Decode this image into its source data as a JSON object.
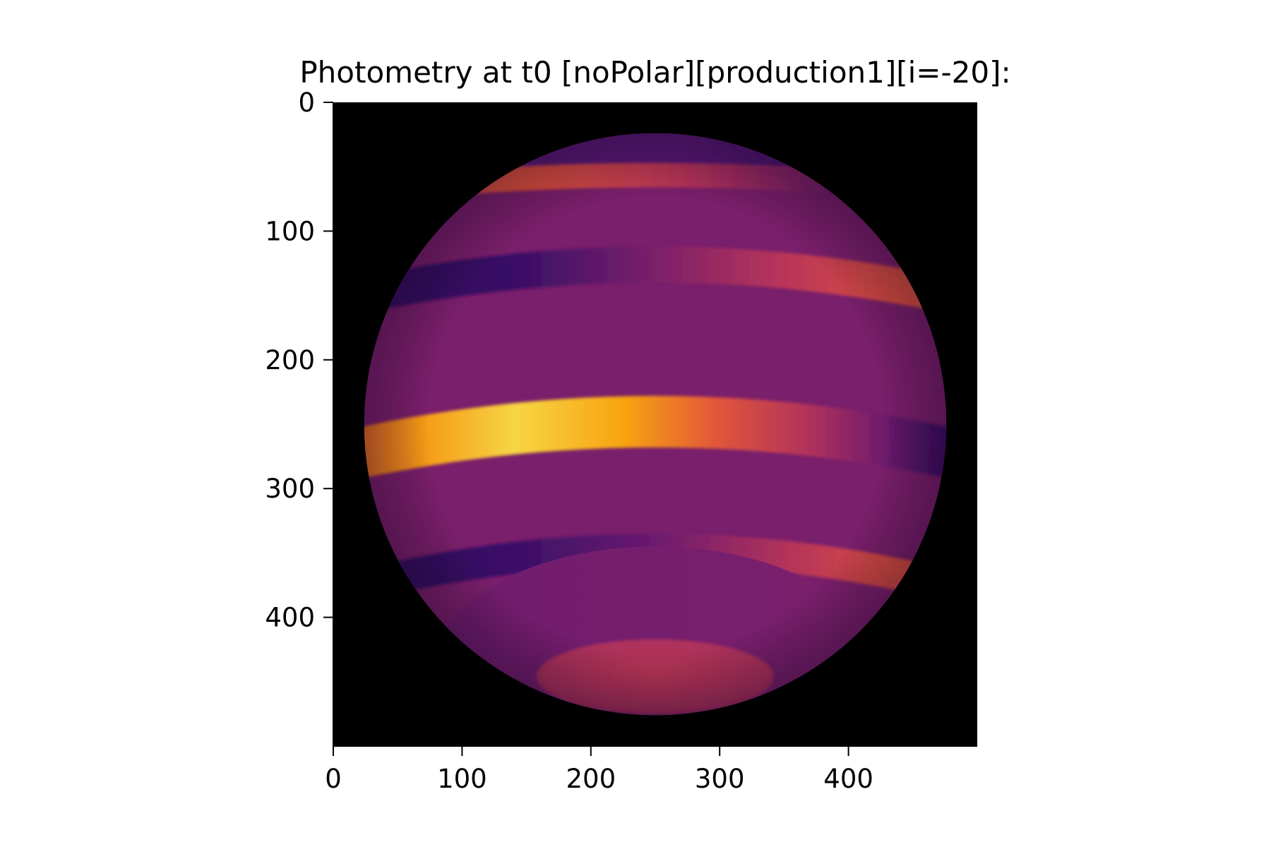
{
  "chart_data": {
    "type": "heatmap",
    "title": "Photometry at t0 [noPolar][production1][i=-20]:",
    "xlabel": "",
    "ylabel": "",
    "image_shape": [
      500,
      500
    ],
    "xlim": [
      0,
      500
    ],
    "ylim": [
      500,
      0
    ],
    "x_ticks": [
      0,
      100,
      200,
      300,
      400
    ],
    "y_ticks": [
      0,
      100,
      200,
      300,
      400
    ],
    "x_tick_labels": [
      "0",
      "100",
      "200",
      "300",
      "400"
    ],
    "y_tick_labels": [
      "0",
      "100",
      "200",
      "300",
      "400"
    ],
    "colormap": "inferno",
    "background_color": "#000000",
    "disk": {
      "center": [
        250,
        250
      ],
      "radius": 226,
      "base_color": "#7a1f6b"
    },
    "bands": [
      {
        "name": "north-cap",
        "y_center": 55,
        "color_left": "#5c1a78",
        "color_right": "#3a0d63"
      },
      {
        "name": "north-bright-band",
        "y_center": 67,
        "color_left": "#e8573a",
        "color_right": "#6b1b79"
      },
      {
        "name": "north-dark-band",
        "y_center": 130,
        "color_left": "#3a0f66",
        "color_right": "#e8583a"
      },
      {
        "name": "equatorial-bright-band",
        "y_center": 255,
        "color_left": "#f4a412",
        "color_right": "#3b0f67"
      },
      {
        "name": "south-dark-band",
        "y_center": 343,
        "color_left": "#3a0f66",
        "color_right": "#e8583a"
      },
      {
        "name": "south-cap",
        "y_center": 445,
        "color_left": "#b4345a",
        "color_right": "#b4345a"
      }
    ]
  }
}
